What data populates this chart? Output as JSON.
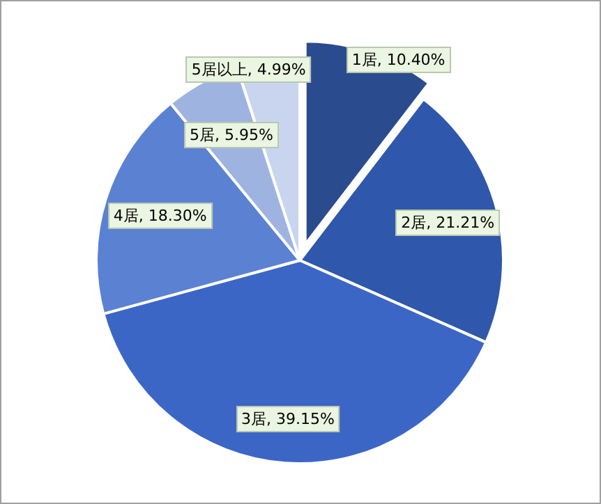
{
  "chart_data": {
    "type": "pie",
    "categories": [
      "1居",
      "2居",
      "3居",
      "4居",
      "5居",
      "5居以上"
    ],
    "values": [
      10.4,
      21.21,
      39.15,
      18.3,
      5.95,
      4.99
    ],
    "value_labels": [
      "10.40%",
      "21.21%",
      "39.15%",
      "18.30%",
      "5.95%",
      "4.99%"
    ],
    "colors": [
      "#2b4b8f",
      "#2f57ab",
      "#3c66c6",
      "#5b81d2",
      "#9fb3e1",
      "#c9d5ef"
    ]
  }
}
